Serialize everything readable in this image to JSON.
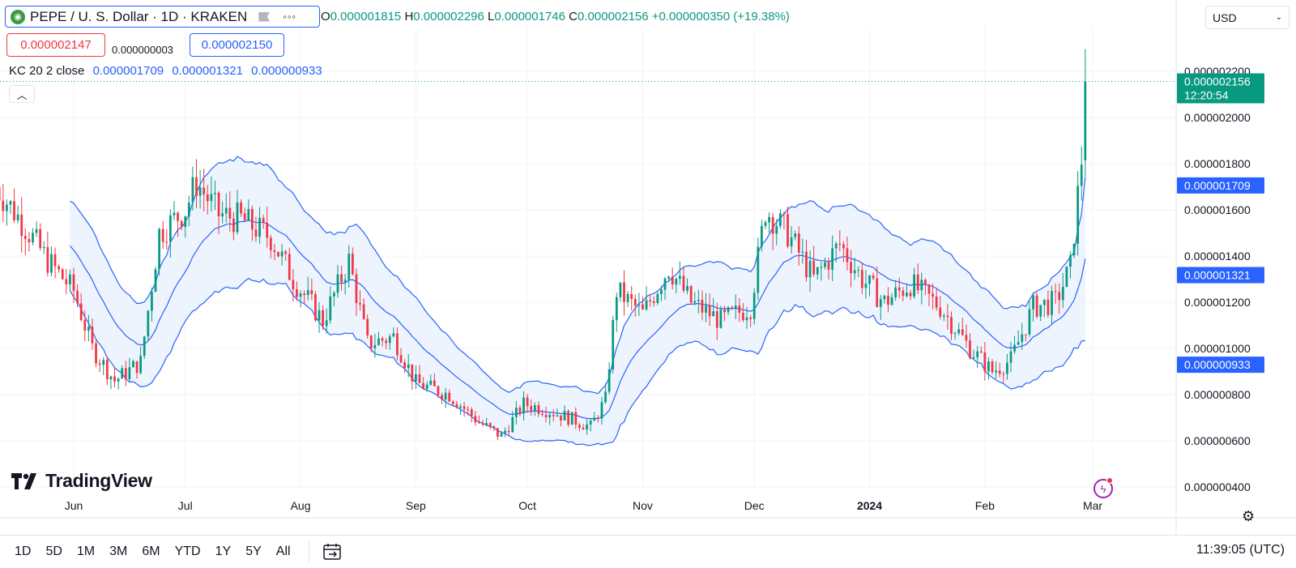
{
  "symbol": {
    "title": "PEPE / U. S. Dollar · 1D · KRAKEN",
    "logo_icon": "frog-icon",
    "more_label": "◦◦◦"
  },
  "ohlc": {
    "o_label": "O",
    "o": "0.000001815",
    "h_label": "H",
    "h": "0.000002296",
    "l_label": "L",
    "l": "0.000001746",
    "c_label": "C",
    "c": "0.000002156",
    "change": "+0.000000350 (+19.38%)"
  },
  "quote": {
    "bid": "0.000002147",
    "spread": "0.000000003",
    "ask": "0.000002150"
  },
  "indicator": {
    "name": "KC 20 2 close",
    "upper": "0.000001709",
    "middle": "0.000001321",
    "lower": "0.000000933"
  },
  "currency": {
    "label": "USD"
  },
  "colors": {
    "up": "#089981",
    "down": "#f23645",
    "band": "#2962ff",
    "band_fill": "#eaf1fd",
    "grid": "#f0f3fa"
  },
  "branding": {
    "name": "TradingView"
  },
  "periods": [
    "1D",
    "5D",
    "1M",
    "3M",
    "6M",
    "YTD",
    "1Y",
    "5Y",
    "All"
  ],
  "clock": "11:39:05 (UTC)",
  "price_axis": {
    "ticks": [
      "0.000002200",
      "0.000002000",
      "0.000001800",
      "0.000001600",
      "0.000001400",
      "0.000001200",
      "0.000001000",
      "0.000000800",
      "0.000000600",
      "0.000000400"
    ],
    "last_price": "0.000002156",
    "countdown": "12:20:54",
    "kc_upper_label": "0.000001709",
    "kc_middle_label": "0.000001321",
    "kc_lower_label": "0.000000933"
  },
  "time_axis": {
    "labels": [
      "Jun",
      "Jul",
      "Aug",
      "Sep",
      "Oct",
      "Nov",
      "Dec",
      "2024",
      "Feb",
      "Mar"
    ]
  },
  "chart_data": {
    "type": "candlestick",
    "title": "PEPE / U. S. Dollar · 1D · KRAKEN",
    "y_unit": "USD",
    "ylim": [
      3.5e-07,
      2.4e-06
    ],
    "xlim": [
      "2023-05-11",
      "2024-03-01"
    ],
    "grid": true,
    "start_date": "2023-05-11",
    "price_walk_keypoints": [
      [
        "2023-05-11",
        1.7e-06
      ],
      [
        "2023-05-18",
        1.55e-06
      ],
      [
        "2023-05-25",
        1.38e-06
      ],
      [
        "2023-06-01",
        1.25e-06
      ],
      [
        "2023-06-06",
        1e-06
      ],
      [
        "2023-06-12",
        8.6e-07
      ],
      [
        "2023-06-19",
        9.4e-07
      ],
      [
        "2023-06-24",
        1.5e-06
      ],
      [
        "2023-07-01",
        1.6e-06
      ],
      [
        "2023-07-04",
        1.72e-06
      ],
      [
        "2023-07-10",
        1.58e-06
      ],
      [
        "2023-07-16",
        1.56e-06
      ],
      [
        "2023-07-24",
        1.48e-06
      ],
      [
        "2023-07-30",
        1.3e-06
      ],
      [
        "2023-08-07",
        1.12e-06
      ],
      [
        "2023-08-14",
        1.38e-06
      ],
      [
        "2023-08-19",
        1.02e-06
      ],
      [
        "2023-08-26",
        1.05e-06
      ],
      [
        "2023-09-01",
        8.5e-07
      ],
      [
        "2023-09-10",
        8e-07
      ],
      [
        "2023-09-18",
        6.8e-07
      ],
      [
        "2023-09-24",
        6.2e-07
      ],
      [
        "2023-09-30",
        7.6e-07
      ],
      [
        "2023-10-05",
        7.4e-07
      ],
      [
        "2023-10-12",
        7e-07
      ],
      [
        "2023-10-18",
        6.6e-07
      ],
      [
        "2023-10-22",
        7.8e-07
      ],
      [
        "2023-10-25",
        1.25e-06
      ],
      [
        "2023-11-01",
        1.15e-06
      ],
      [
        "2023-11-08",
        1.35e-06
      ],
      [
        "2023-11-14",
        1.2e-06
      ],
      [
        "2023-11-22",
        1.12e-06
      ],
      [
        "2023-11-30",
        1.18e-06
      ],
      [
        "2023-12-04",
        1.6e-06
      ],
      [
        "2023-12-10",
        1.5e-06
      ],
      [
        "2023-12-17",
        1.3e-06
      ],
      [
        "2023-12-24",
        1.45e-06
      ],
      [
        "2023-12-30",
        1.3e-06
      ],
      [
        "2024-01-05",
        1.2e-06
      ],
      [
        "2024-01-12",
        1.28e-06
      ],
      [
        "2024-01-20",
        1.18e-06
      ],
      [
        "2024-01-28",
        1e-06
      ],
      [
        "2024-02-03",
        9e-07
      ],
      [
        "2024-02-08",
        9.5e-07
      ],
      [
        "2024-02-14",
        1.18e-06
      ],
      [
        "2024-02-20",
        1.2e-06
      ],
      [
        "2024-02-24",
        1.35e-06
      ],
      [
        "2024-02-27",
        1.82e-06
      ],
      [
        "2024-02-28",
        2.156e-06
      ]
    ],
    "last_bar": {
      "date": "2024-02-28",
      "open": 1.815e-06,
      "high": 2.296e-06,
      "low": 1.746e-06,
      "close": 2.156e-06
    },
    "keltner": {
      "length": 20,
      "multiplier": 2,
      "source": "close",
      "upper": 1.709e-06,
      "middle": 1.321e-06,
      "lower": 9.33e-07
    },
    "x_tick_dates": [
      "2023-06-01",
      "2023-07-01",
      "2023-08-01",
      "2023-09-01",
      "2023-10-01",
      "2023-11-01",
      "2023-12-01",
      "2024-01-01",
      "2024-02-01",
      "2024-03-01"
    ]
  }
}
